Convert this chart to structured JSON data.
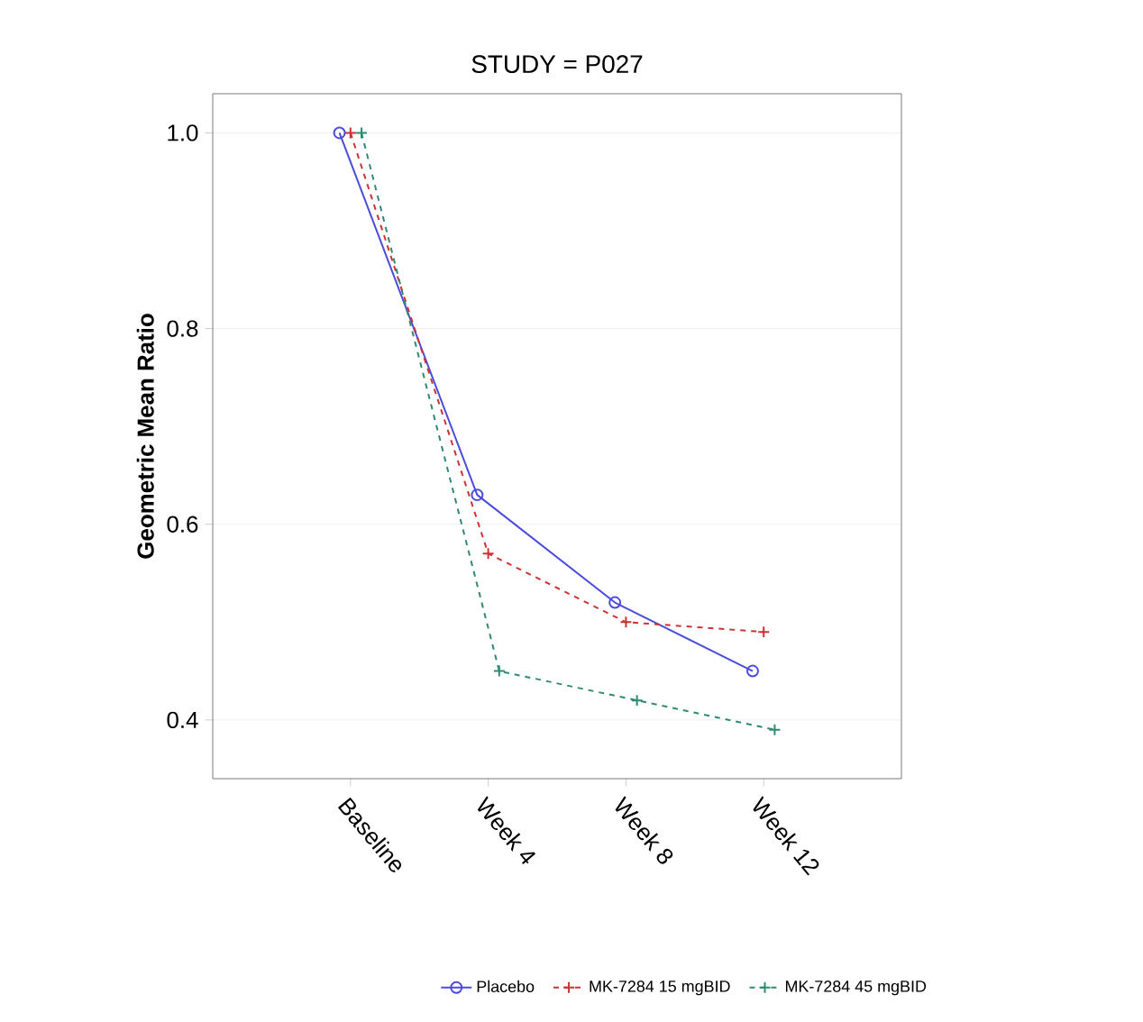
{
  "chart_data": {
    "type": "line",
    "title": "STUDY = P027",
    "ylabel": "Geometric Mean Ratio",
    "categories": [
      "Baseline",
      "Week 4",
      "Week 8",
      "Week 12"
    ],
    "series": [
      {
        "name": "Placebo",
        "color": "#4b4bdc",
        "values": [
          1.0,
          0.63,
          0.52,
          0.45
        ],
        "marker": "circle",
        "line_style": "solid"
      },
      {
        "name": "MK-7284 15 mgBID",
        "color": "#cc3333",
        "values": [
          1.0,
          0.57,
          0.5,
          0.49
        ],
        "marker": "cross",
        "line_style": "dashed"
      },
      {
        "name": "MK-7284 45 mgBID",
        "color": "#2e8b72",
        "values": [
          1.0,
          0.45,
          0.42,
          0.39
        ],
        "marker": "cross",
        "line_style": "dashed"
      }
    ],
    "ylim": [
      0.34,
      1.04
    ],
    "yticks": [
      {
        "value": 0.4,
        "label": "0.4"
      },
      {
        "value": 0.6,
        "label": "0.6"
      },
      {
        "value": 0.8,
        "label": "0.8"
      },
      {
        "value": 1.0,
        "label": "1.0"
      }
    ],
    "grid": "y",
    "legend": "bottom"
  }
}
